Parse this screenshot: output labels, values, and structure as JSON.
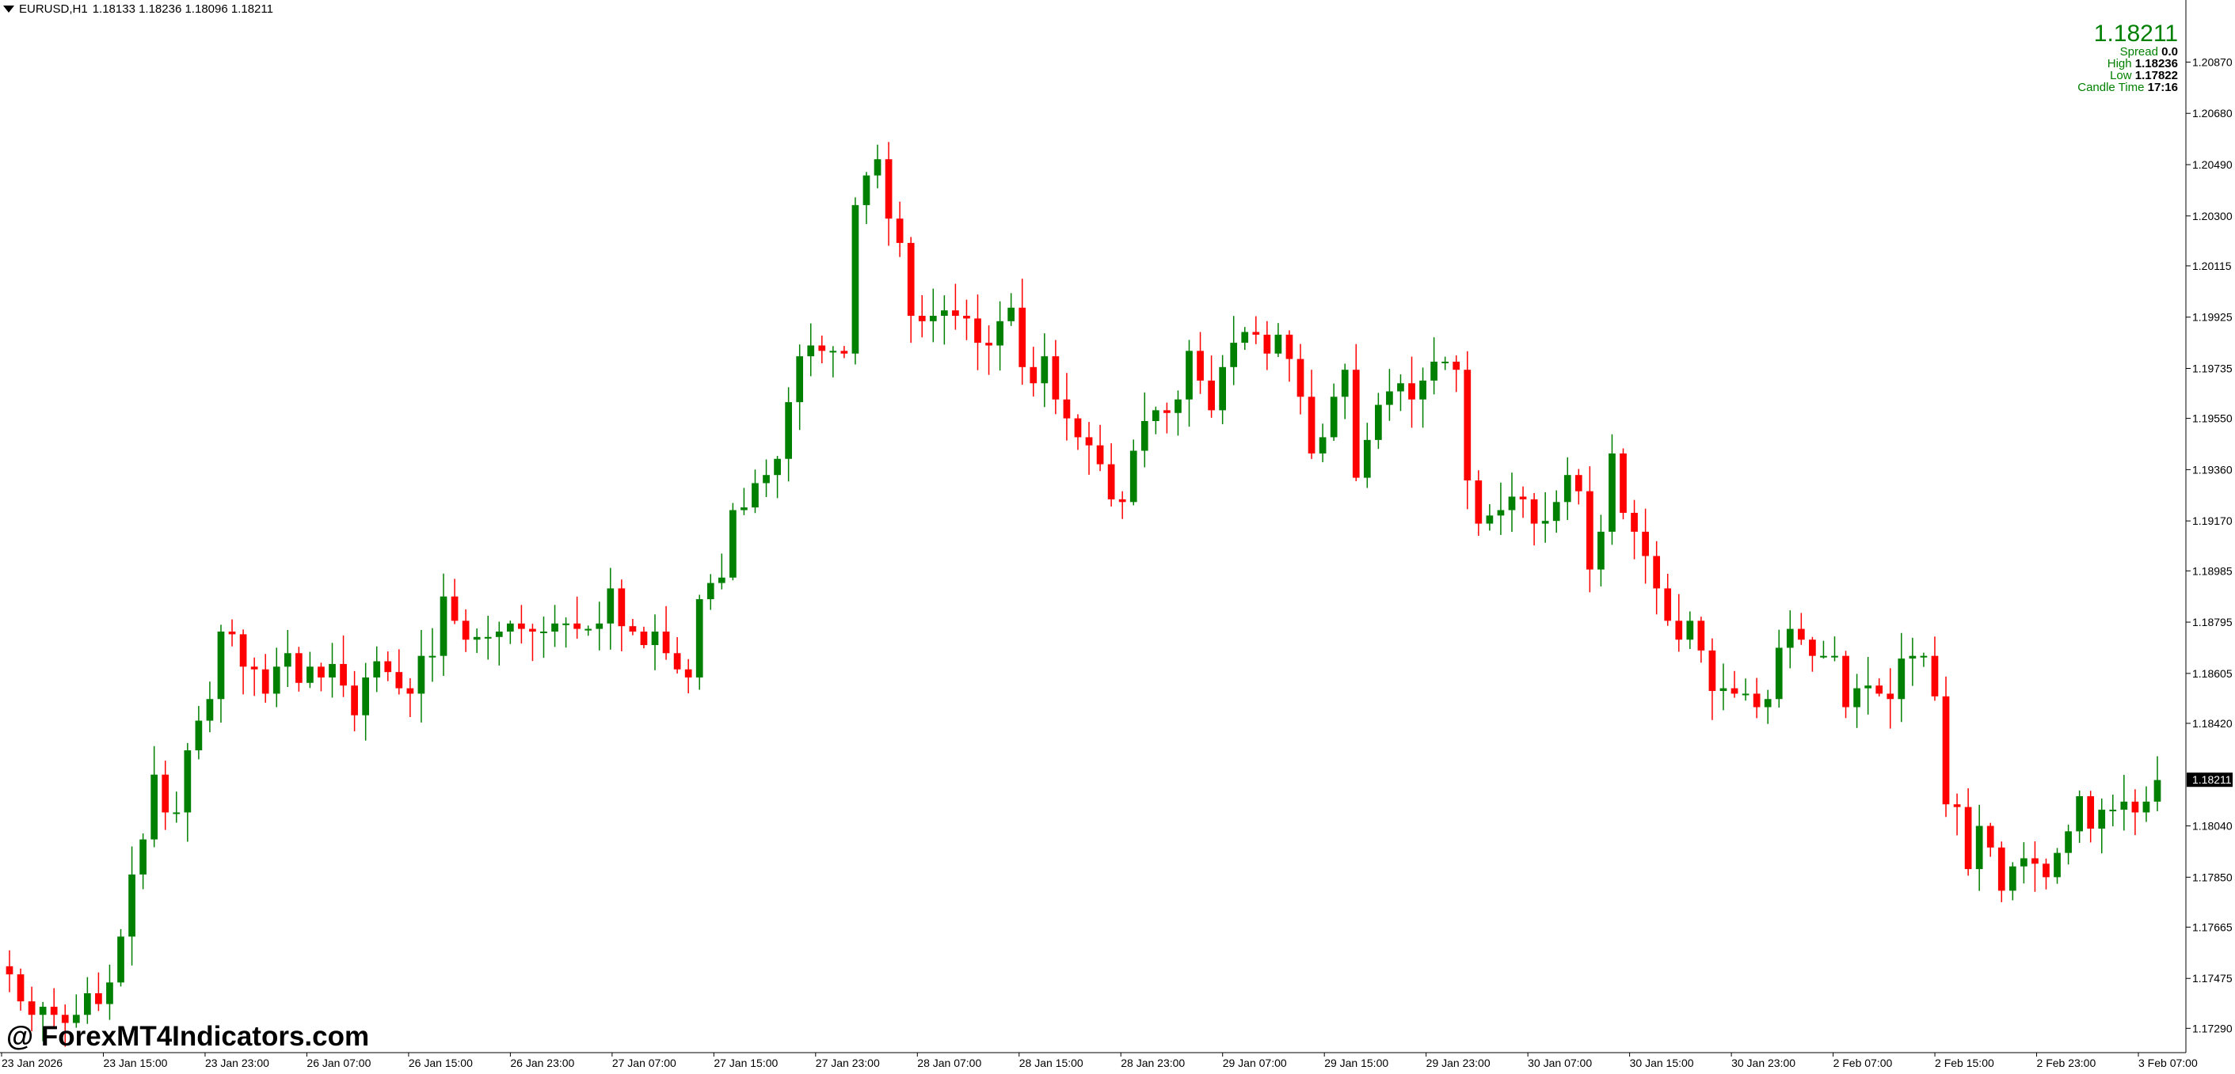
{
  "header": {
    "symbol": "EURUSD,H1",
    "ohlc": "1.18133 1.18236 1.18096 1.18211"
  },
  "info_panel": {
    "price": "1.18211",
    "rows": [
      {
        "label": "Spread",
        "value": "0.0"
      },
      {
        "label": "High",
        "value": "1.18236"
      },
      {
        "label": "Low",
        "value": "1.17822"
      },
      {
        "label": "Candle Time",
        "value": "17:16"
      }
    ]
  },
  "watermark": "@ ForexMT4Indicators.com",
  "colors": {
    "bull": "#008000",
    "bear": "#ff0000",
    "axis": "#000000",
    "background": "#ffffff",
    "price_tag_bg": "#000000",
    "price_tag_text": "#ffffff"
  },
  "chart_data": {
    "type": "candlestick",
    "price_axis_ticks": [
      "1.20870",
      "1.20680",
      "1.20490",
      "1.20300",
      "1.20115",
      "1.19925",
      "1.19735",
      "1.19550",
      "1.19360",
      "1.19170",
      "1.18985",
      "1.18795",
      "1.18605",
      "1.18420",
      "1.18040",
      "1.17850",
      "1.17665",
      "1.17475",
      "1.17290"
    ],
    "current_price_label": "1.18211",
    "current_price": 1.18211,
    "time_axis_labels": [
      "23 Jan 2026",
      "23 Jan 15:00",
      "23 Jan 23:00",
      "26 Jan 07:00",
      "26 Jan 15:00",
      "26 Jan 23:00",
      "27 Jan 07:00",
      "27 Jan 15:00",
      "27 Jan 23:00",
      "28 Jan 07:00",
      "28 Jan 15:00",
      "28 Jan 23:00",
      "29 Jan 07:00",
      "29 Jan 15:00",
      "29 Jan 23:00",
      "30 Jan 07:00",
      "30 Jan 15:00",
      "30 Jan 23:00",
      "2 Feb 07:00",
      "2 Feb 15:00",
      "2 Feb 23:00",
      "3 Feb 07:00"
    ],
    "ylim": [
      1.172,
      1.211
    ],
    "closes": [
      1.1749,
      1.1739,
      1.1734,
      1.1737,
      1.1734,
      1.1731,
      1.1734,
      1.1742,
      1.1738,
      1.1746,
      1.1763,
      1.1786,
      1.1799,
      1.1823,
      1.1809,
      1.1809,
      1.1832,
      1.1843,
      1.1851,
      1.1876,
      1.1875,
      1.1863,
      1.1862,
      1.1853,
      1.1863,
      1.1868,
      1.1857,
      1.1863,
      1.1859,
      1.1864,
      1.1856,
      1.1845,
      1.1859,
      1.1865,
      1.1861,
      1.1855,
      1.1853,
      1.1867,
      1.1867,
      1.1889,
      1.188,
      1.1873,
      1.1874,
      1.1874,
      1.1876,
      1.1879,
      1.1877,
      1.1876,
      1.1876,
      1.1879,
      1.1879,
      1.1877,
      1.1877,
      1.1879,
      1.1892,
      1.1878,
      1.1876,
      1.1871,
      1.1876,
      1.1868,
      1.1862,
      1.1859,
      1.1888,
      1.1894,
      1.1896,
      1.1921,
      1.1922,
      1.1931,
      1.1934,
      1.194,
      1.1961,
      1.1978,
      1.1982,
      1.198,
      1.198,
      1.1979,
      1.2034,
      1.2045,
      1.2051,
      1.2029,
      1.202,
      1.1993,
      1.1991,
      1.1993,
      1.1995,
      1.1993,
      1.1992,
      1.1983,
      1.1982,
      1.1991,
      1.1996,
      1.1974,
      1.1968,
      1.1978,
      1.1962,
      1.1955,
      1.1948,
      1.1945,
      1.1938,
      1.1925,
      1.1924,
      1.1943,
      1.1954,
      1.1958,
      1.1957,
      1.1962,
      1.198,
      1.1969,
      1.1958,
      1.1974,
      1.1983,
      1.1987,
      1.1986,
      1.1979,
      1.1986,
      1.1977,
      1.1963,
      1.1942,
      1.1948,
      1.1963,
      1.1973,
      1.1933,
      1.1947,
      1.196,
      1.1965,
      1.1968,
      1.1962,
      1.1969,
      1.1976,
      1.1976,
      1.1973,
      1.1932,
      1.1916,
      1.1919,
      1.1921,
      1.1926,
      1.1925,
      1.1916,
      1.1917,
      1.1924,
      1.1934,
      1.1928,
      1.1899,
      1.1913,
      1.1942,
      1.192,
      1.1913,
      1.1904,
      1.1892,
      1.188,
      1.1873,
      1.188,
      1.1869,
      1.1854,
      1.1855,
      1.1853,
      1.1853,
      1.1848,
      1.1851,
      1.187,
      1.1877,
      1.1873,
      1.1867,
      1.1867,
      1.1867,
      1.1848,
      1.1855,
      1.1856,
      1.1853,
      1.1851,
      1.1866,
      1.1867,
      1.1867,
      1.1852,
      1.1812,
      1.1811,
      1.1788,
      1.1804,
      1.1796,
      1.178,
      1.1789,
      1.1792,
      1.179,
      1.1785,
      1.1794,
      1.1802,
      1.1815,
      1.1803,
      1.181,
      1.181,
      1.1813,
      1.1809,
      1.1813,
      1.1821
    ],
    "note_series": "H1 candles; open of each candle equals previous close"
  }
}
